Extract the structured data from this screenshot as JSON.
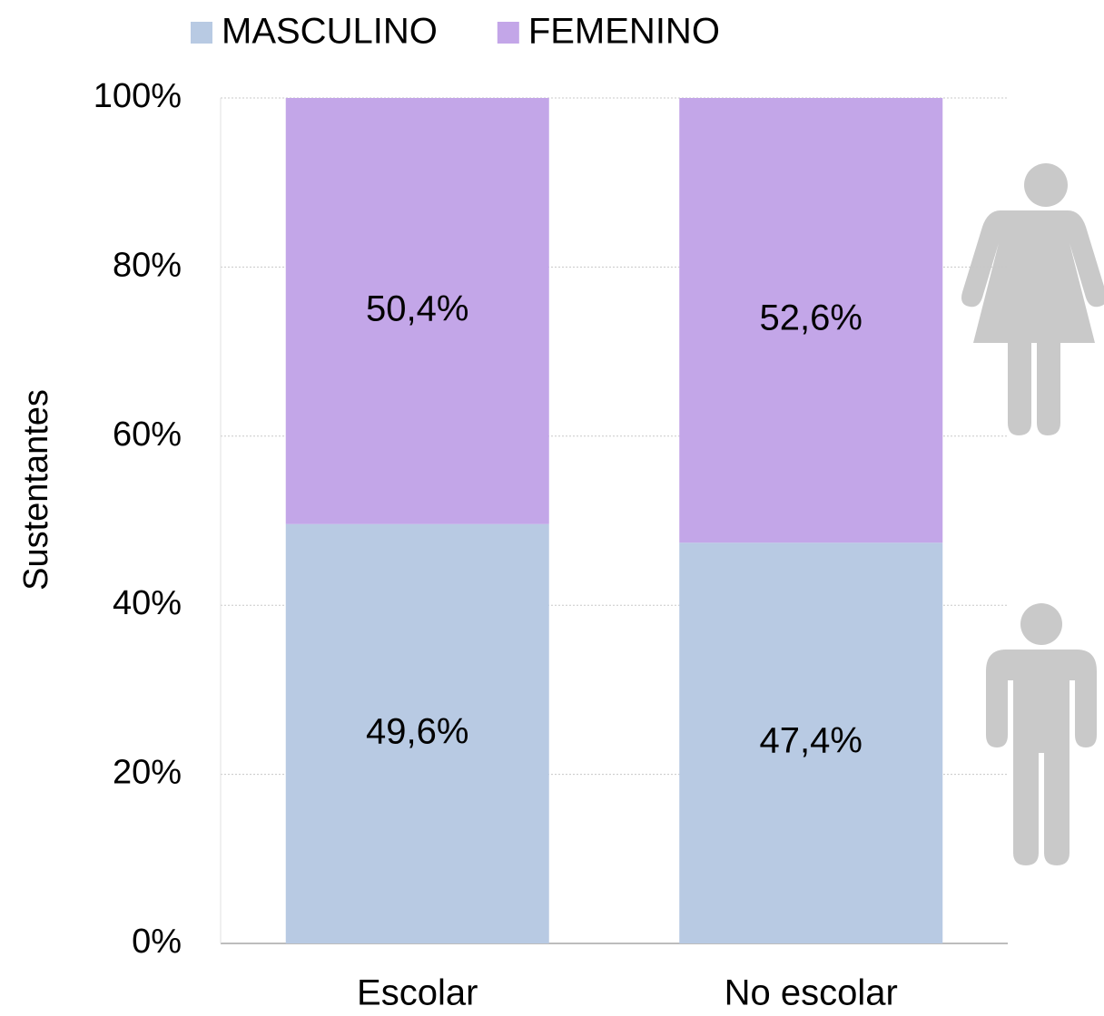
{
  "chart_data": {
    "type": "stacked_bar",
    "ylabel": "Sustentantes",
    "categories": [
      "Escolar",
      "No escolar"
    ],
    "series": [
      {
        "name": "MASCULINO",
        "color": "#b8cae3",
        "values": [
          49.6,
          47.4
        ],
        "value_labels": [
          "49,6%",
          "47,4%"
        ]
      },
      {
        "name": "FEMENINO",
        "color": "#c3a6e8",
        "values": [
          50.4,
          52.6
        ],
        "value_labels": [
          "50,4%",
          "52,6%"
        ]
      }
    ],
    "ylim": [
      0,
      100
    ],
    "yticks": [
      {
        "value": 0,
        "label": "0%"
      },
      {
        "value": 20,
        "label": "20%"
      },
      {
        "value": 40,
        "label": "40%"
      },
      {
        "value": 60,
        "label": "60%"
      },
      {
        "value": 80,
        "label": "80%"
      },
      {
        "value": 100,
        "label": "100%"
      }
    ],
    "grid": true,
    "legend": "top"
  }
}
